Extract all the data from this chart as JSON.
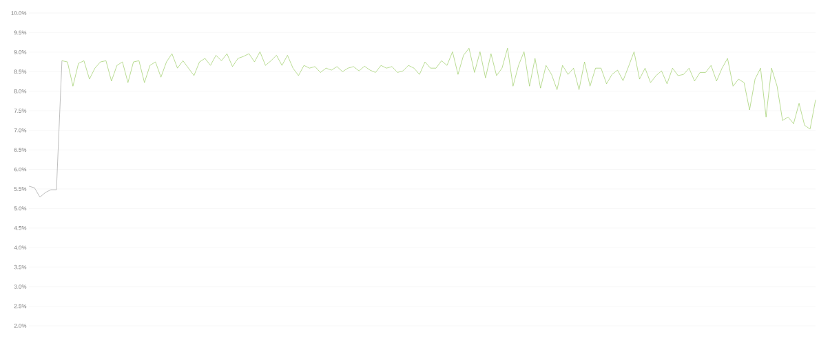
{
  "chart_data": {
    "type": "line",
    "categories": [
      null,
      null,
      null,
      null,
      null,
      null,
      null,
      null,
      null,
      null,
      null,
      null,
      null,
      null,
      null,
      null,
      null,
      null,
      null,
      null,
      null,
      null,
      null,
      null,
      null,
      null,
      null,
      null,
      null,
      null,
      null,
      null,
      null,
      null,
      null,
      null,
      null,
      null,
      null,
      null,
      null,
      null,
      null,
      null,
      null,
      null,
      null,
      null,
      null,
      null,
      null,
      null,
      null,
      null,
      null,
      null,
      null,
      null,
      null,
      null,
      null,
      null,
      null,
      null,
      null,
      null,
      null,
      null,
      null,
      null,
      null,
      null,
      null,
      null,
      null,
      null,
      null,
      null,
      null,
      null,
      null,
      null,
      null,
      null,
      null,
      null,
      null,
      null,
      null,
      null,
      null,
      null,
      null,
      null,
      null,
      null,
      null,
      null,
      null,
      null,
      null,
      null,
      null,
      null,
      null,
      null,
      null,
      null,
      null,
      null,
      null,
      null,
      null,
      null,
      null,
      null,
      null,
      null,
      null,
      null,
      null,
      null,
      null,
      null,
      null,
      null,
      null,
      null,
      null,
      null,
      null,
      null,
      null,
      null,
      null,
      null,
      null,
      null,
      null,
      null,
      null,
      null,
      null,
      null
    ],
    "series": [
      {
        "color": "#a0a0a0",
        "values": [
          5.57,
          5.53,
          5.29,
          5.41,
          5.48,
          5.48,
          8.78,
          null,
          null,
          null,
          null,
          null,
          null,
          null,
          null,
          null,
          null,
          null,
          null,
          null,
          null,
          null,
          null,
          null,
          null,
          null,
          null,
          null,
          null,
          null,
          null,
          null,
          null,
          null,
          null,
          null,
          null,
          null,
          null,
          null,
          null,
          null,
          null,
          null,
          null,
          null,
          null,
          null,
          null,
          null,
          null,
          null,
          null,
          null,
          null,
          null,
          null,
          null,
          null,
          null,
          null,
          null,
          null,
          null,
          null,
          null,
          null,
          null,
          null,
          null,
          null,
          null,
          null,
          null,
          null,
          null,
          null,
          null,
          null,
          null,
          null,
          null,
          null,
          null,
          null,
          null,
          null,
          null,
          null,
          null,
          null,
          null,
          null,
          null,
          null,
          null,
          null,
          null,
          null,
          null,
          null,
          null,
          null,
          null,
          null,
          null,
          null,
          null,
          null,
          null,
          null,
          null,
          null,
          null,
          null,
          null,
          null,
          null,
          null,
          null,
          null,
          null,
          null,
          null,
          null,
          null,
          null,
          null,
          null,
          null,
          null,
          null,
          null,
          null,
          null,
          null,
          null,
          null,
          null,
          null,
          null,
          null,
          null,
          null
        ]
      },
      {
        "color": "#9ccc65",
        "values": [
          null,
          null,
          null,
          null,
          null,
          null,
          8.78,
          8.75,
          8.13,
          8.71,
          8.78,
          8.31,
          8.59,
          8.75,
          8.78,
          8.26,
          8.66,
          8.75,
          8.22,
          8.75,
          8.78,
          8.22,
          8.66,
          8.75,
          8.36,
          8.75,
          8.96,
          8.59,
          8.78,
          8.59,
          8.4,
          8.75,
          8.84,
          8.66,
          8.92,
          8.78,
          8.96,
          8.63,
          8.84,
          8.89,
          8.96,
          8.75,
          9.01,
          8.66,
          8.78,
          8.92,
          8.66,
          8.92,
          8.59,
          8.4,
          8.66,
          8.59,
          8.63,
          8.48,
          8.59,
          8.54,
          8.63,
          8.5,
          8.59,
          8.63,
          8.52,
          8.64,
          8.54,
          8.48,
          8.66,
          8.59,
          8.63,
          8.48,
          8.52,
          8.66,
          8.59,
          8.43,
          8.75,
          8.59,
          8.59,
          8.78,
          8.66,
          9.01,
          8.43,
          8.92,
          9.1,
          8.48,
          9.01,
          8.34,
          8.96,
          8.4,
          8.59,
          9.1,
          8.13,
          8.66,
          9.01,
          8.13,
          8.84,
          8.08,
          8.66,
          8.43,
          8.04,
          8.66,
          8.43,
          8.59,
          8.04,
          8.75,
          8.13,
          8.59,
          8.59,
          8.19,
          8.43,
          8.54,
          8.27,
          8.63,
          9.01,
          8.31,
          8.59,
          8.22,
          8.4,
          8.52,
          8.19,
          8.59,
          8.4,
          8.43,
          8.59,
          8.26,
          8.48,
          8.48,
          8.66,
          8.26,
          8.59,
          8.84,
          8.13,
          8.31,
          8.22,
          7.52,
          8.31,
          8.59,
          7.34,
          8.59,
          8.13,
          7.25,
          7.34,
          7.17,
          7.69,
          7.13,
          7.03,
          7.78
        ]
      }
    ],
    "ylim": [
      2,
      10
    ],
    "yticks": [
      {
        "value": 2,
        "label": "2.0%"
      },
      {
        "value": 2.5,
        "label": "2.5%"
      },
      {
        "value": 3,
        "label": "3.0%"
      },
      {
        "value": 3.5,
        "label": "3.5%"
      },
      {
        "value": 4,
        "label": "4.0%"
      },
      {
        "value": 4.5,
        "label": "4.5%"
      },
      {
        "value": 5,
        "label": "5.0%"
      },
      {
        "value": 5.5,
        "label": "5.5%"
      },
      {
        "value": 6,
        "label": "6.0%"
      },
      {
        "value": 6.5,
        "label": "6.5%"
      },
      {
        "value": 7,
        "label": "7.0%"
      },
      {
        "value": 7.5,
        "label": "7.5%"
      },
      {
        "value": 8,
        "label": "8.0%"
      },
      {
        "value": 8.5,
        "label": "8.5%"
      },
      {
        "value": 9,
        "label": "9.0%"
      },
      {
        "value": 9.5,
        "label": "9.5%"
      },
      {
        "value": 10,
        "label": "10.0%"
      }
    ],
    "grid": "y",
    "line_style": "solid"
  }
}
